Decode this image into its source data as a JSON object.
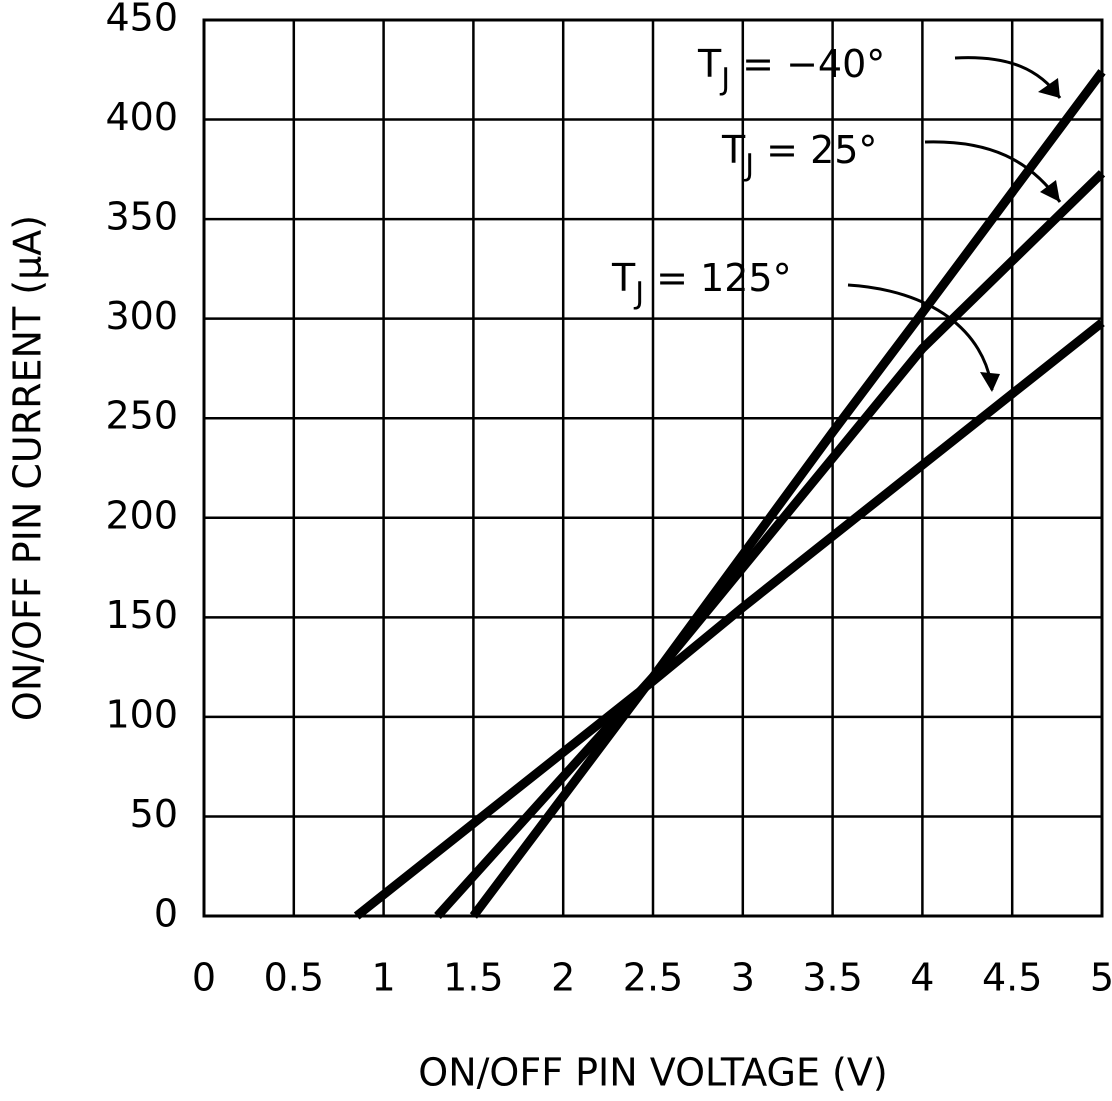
{
  "chart_data": {
    "type": "line",
    "xlabel": "ON/OFF PIN VOLTAGE (V)",
    "ylabel": "ON/OFF PIN CURRENT (μA)",
    "xlim": [
      0,
      5
    ],
    "xticks": [
      0,
      0.5,
      1,
      1.5,
      2,
      2.5,
      3,
      3.5,
      4,
      4.5,
      5
    ],
    "ylim": [
      0,
      450
    ],
    "yticks": [
      0,
      50,
      100,
      150,
      200,
      250,
      300,
      350,
      400,
      450
    ],
    "grid": true,
    "series": [
      {
        "color": "#000000",
        "x": [
          1.5,
          2.5,
          3.5,
          4,
          5
        ],
        "values": [
          0,
          120,
          243,
          303,
          424
        ]
      },
      {
        "color": "#000000",
        "x": [
          1.3,
          2.5,
          4,
          5
        ],
        "values": [
          0,
          120,
          285,
          373
        ]
      },
      {
        "color": "#000000",
        "x": [
          0.85,
          2.5,
          3,
          5
        ],
        "values": [
          0,
          118,
          155,
          298
        ]
      }
    ],
    "annotations": [
      {
        "main": "T",
        "sub": "J",
        "rest": " = −40°"
      },
      {
        "main": "T",
        "sub": "J",
        "rest": " = 25°"
      },
      {
        "main": "T",
        "sub": "J",
        "rest": " = 125°"
      }
    ]
  }
}
